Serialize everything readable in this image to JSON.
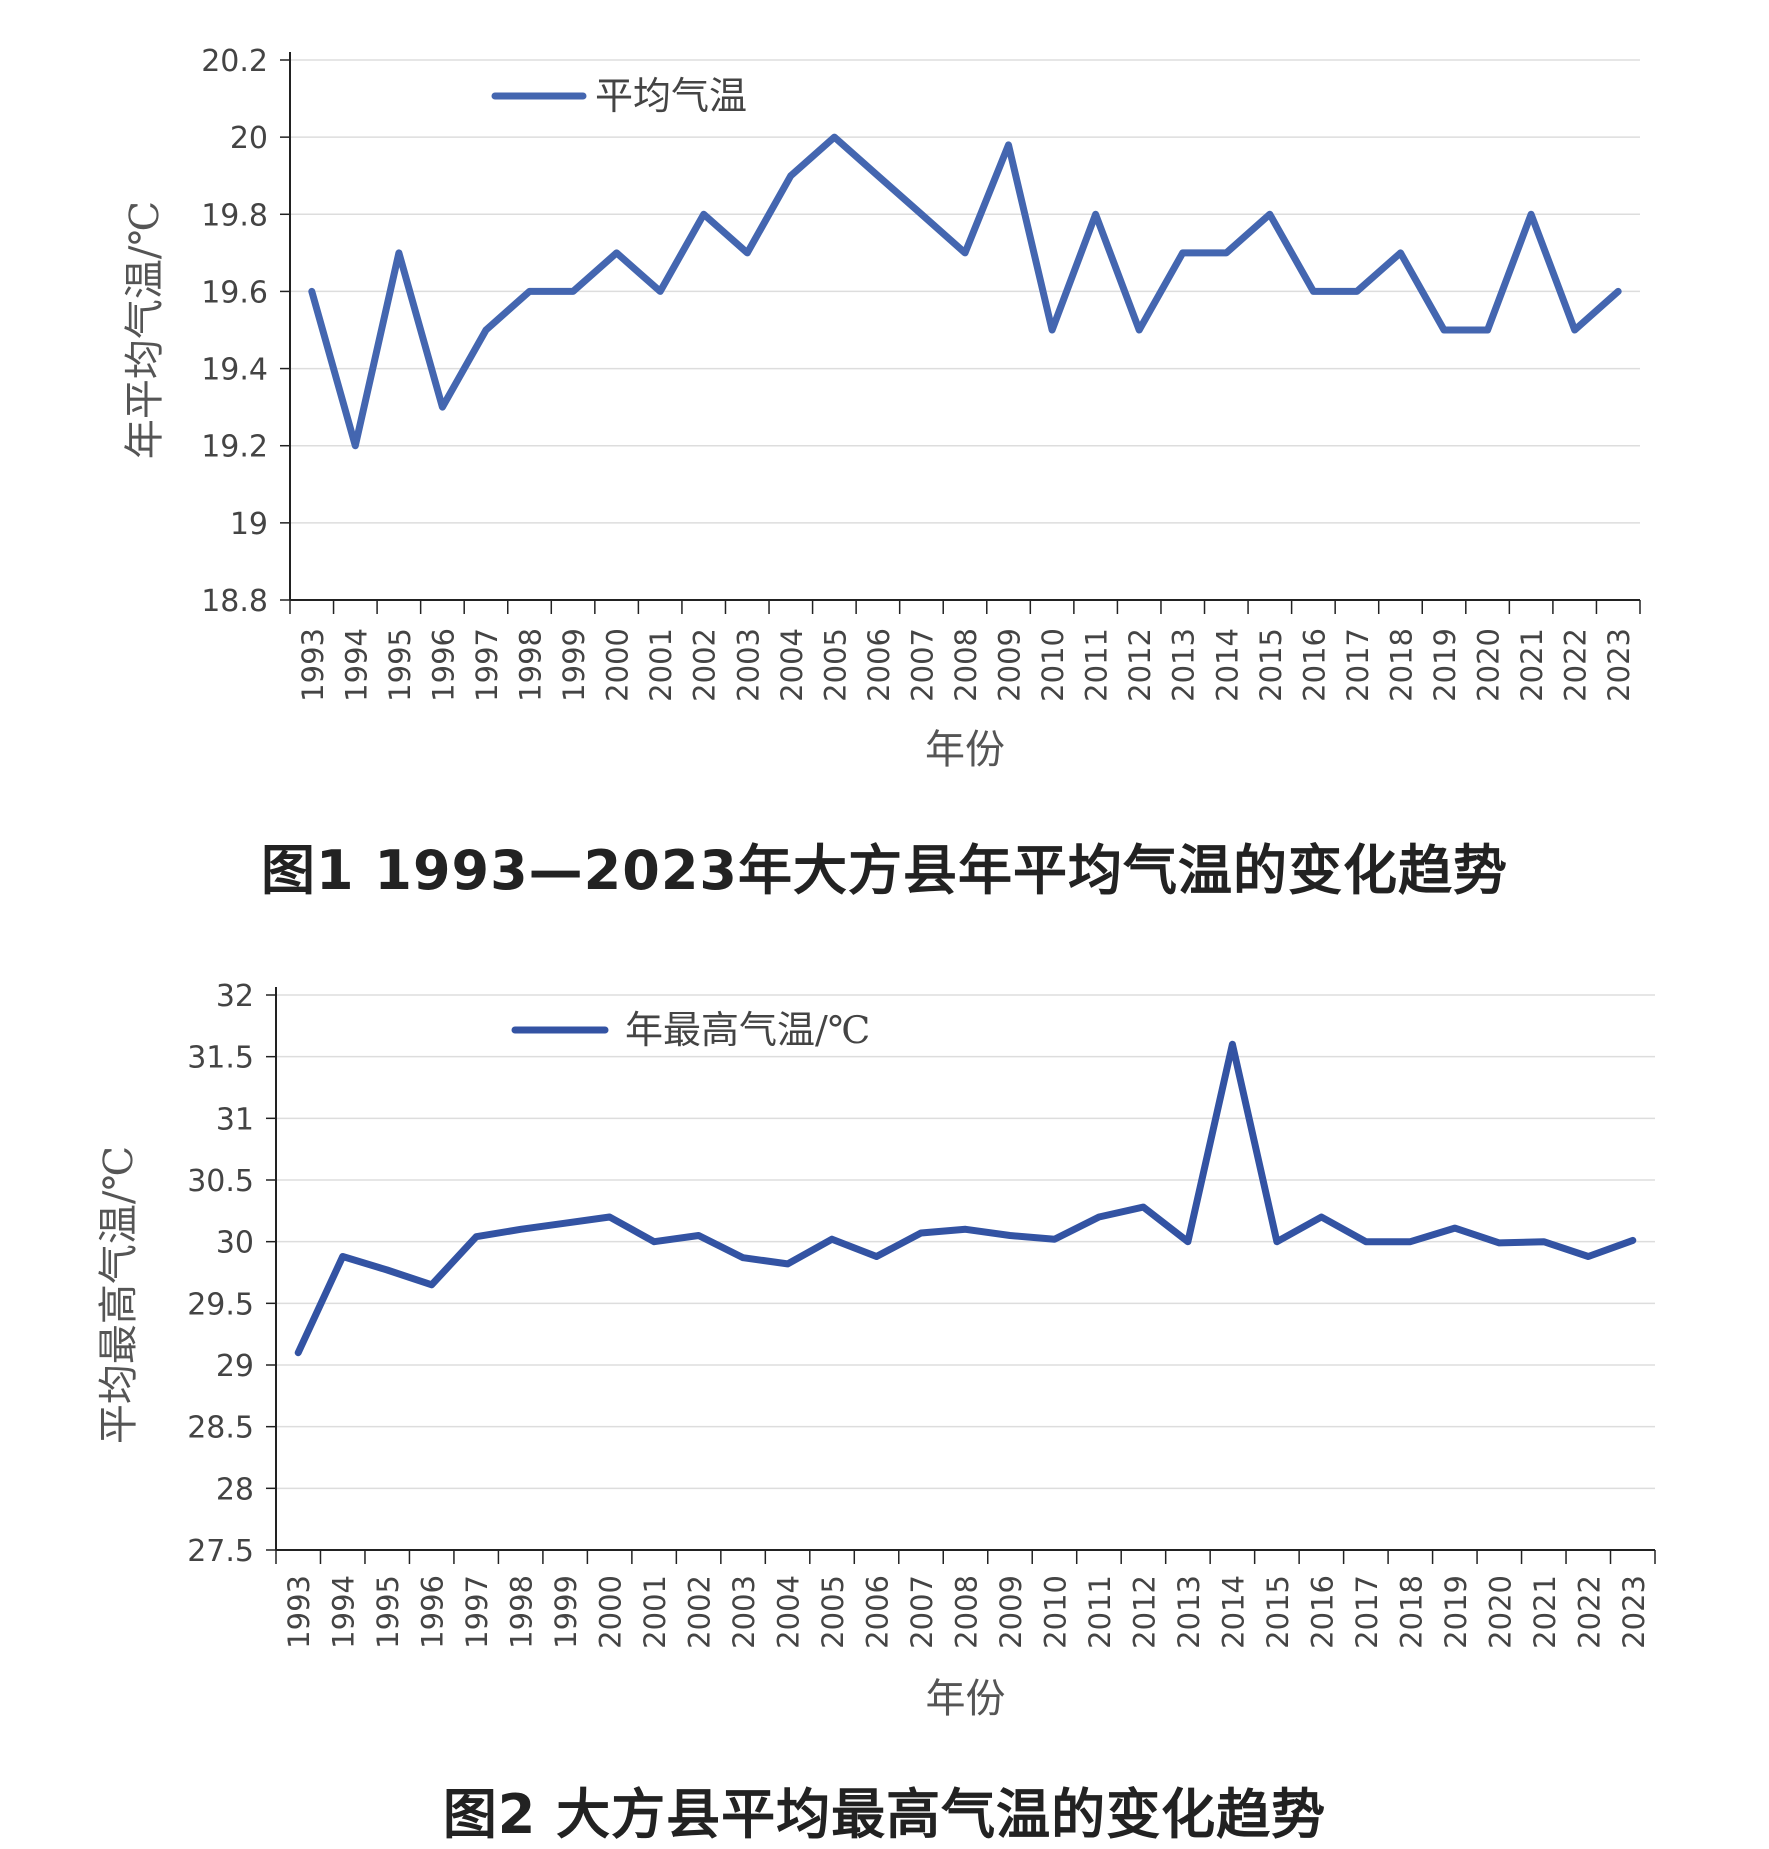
{
  "chart_data": [
    {
      "type": "line",
      "categories": [
        "1993",
        "1994",
        "1995",
        "1996",
        "1997",
        "1998",
        "1999",
        "2000",
        "2001",
        "2002",
        "2003",
        "2004",
        "2005",
        "2006",
        "2007",
        "2008",
        "2009",
        "2010",
        "2011",
        "2012",
        "2013",
        "2014",
        "2015",
        "2016",
        "2017",
        "2018",
        "2019",
        "2020",
        "2021",
        "2022",
        "2023"
      ],
      "series": [
        {
          "name": "平均气温",
          "values": [
            19.6,
            19.2,
            19.7,
            19.3,
            19.5,
            19.6,
            19.6,
            19.7,
            19.6,
            19.8,
            19.7,
            19.9,
            20.0,
            19.9,
            19.8,
            19.7,
            19.98,
            19.5,
            19.8,
            19.5,
            19.7,
            19.7,
            19.8,
            19.6,
            19.6,
            19.7,
            19.5,
            19.5,
            19.8,
            19.5,
            19.6
          ]
        }
      ],
      "ylabel": "年平均气温/℃",
      "xlabel": "年份",
      "ylim": [
        18.8,
        20.2
      ],
      "yticks": [
        "18.8",
        "19",
        "19.2",
        "19.4",
        "19.6",
        "19.8",
        "20",
        "20.2"
      ],
      "grid": true,
      "legend": "top-left",
      "color": "#4466b0",
      "caption": "图1  1993—2023年大方县年平均气温的变化趋势"
    },
    {
      "type": "line",
      "categories": [
        "1993",
        "1994",
        "1995",
        "1996",
        "1997",
        "1998",
        "1999",
        "2000",
        "2001",
        "2002",
        "2003",
        "2004",
        "2005",
        "2006",
        "2007",
        "2008",
        "2009",
        "2010",
        "2011",
        "2012",
        "2013",
        "2014",
        "2015",
        "2016",
        "2017",
        "2018",
        "2019",
        "2020",
        "2021",
        "2022",
        "2023"
      ],
      "series": [
        {
          "name": "年最高气温/℃",
          "values": [
            29.1,
            29.88,
            29.77,
            29.65,
            30.04,
            30.1,
            30.15,
            30.2,
            30.0,
            30.05,
            29.87,
            29.82,
            30.02,
            29.88,
            30.07,
            30.1,
            30.05,
            30.02,
            30.2,
            30.28,
            30.0,
            31.6,
            30.0,
            30.2,
            30.0,
            30.0,
            30.11,
            29.99,
            30.0,
            29.88,
            30.01
          ]
        }
      ],
      "ylabel": "平均最高气温/℃",
      "xlabel": "年份",
      "ylim": [
        27.5,
        32
      ],
      "yticks": [
        "27.5",
        "28",
        "28.5",
        "29",
        "29.5",
        "30",
        "30.5",
        "31",
        "31.5",
        "32"
      ],
      "grid": true,
      "legend": "top-left",
      "color": "#3353a3",
      "caption": "图2  大方县平均最高气温的变化趋势"
    }
  ]
}
